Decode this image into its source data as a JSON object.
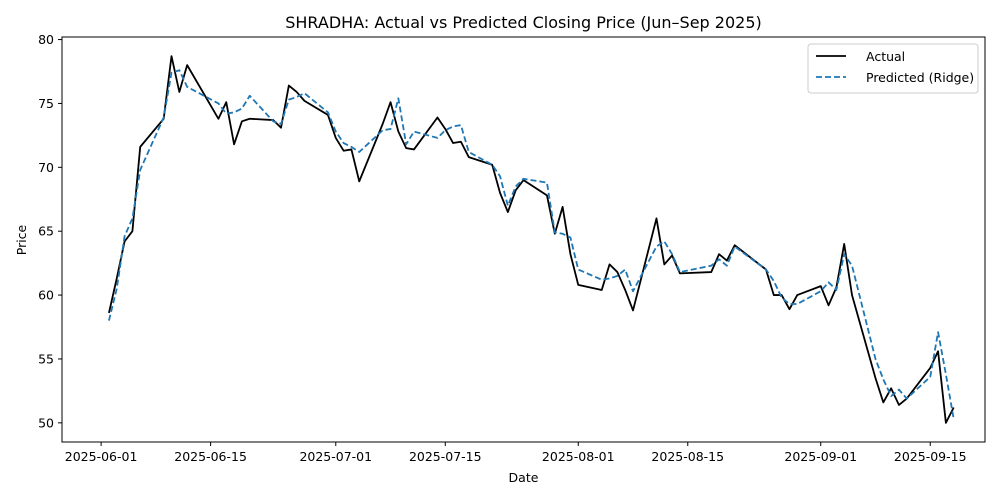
{
  "chart_data": {
    "type": "line",
    "title": "SHRADHA: Actual vs Predicted Closing Price (Jun–Sep 2025)",
    "xlabel": "Date",
    "ylabel": "Price",
    "xlim": [
      "2025-05-27",
      "2025-09-22"
    ],
    "ylim": [
      48.5,
      80.2
    ],
    "x_ticks": [
      "2025-06-01",
      "2025-06-15",
      "2025-07-01",
      "2025-07-15",
      "2025-08-01",
      "2025-08-15",
      "2025-09-01",
      "2025-09-15"
    ],
    "y_ticks": [
      50,
      55,
      60,
      65,
      70,
      75,
      80
    ],
    "grid": false,
    "legend_position": "top-right",
    "series": [
      {
        "name": "Actual",
        "color": "#000000",
        "line_style": "solid",
        "points": [
          [
            "2025-06-02",
            58.6
          ],
          [
            "2025-06-03",
            61.3
          ],
          [
            "2025-06-04",
            64.2
          ],
          [
            "2025-06-05",
            65.0
          ],
          [
            "2025-06-06",
            71.6
          ],
          [
            "2025-06-09",
            73.8
          ],
          [
            "2025-06-10",
            78.7
          ],
          [
            "2025-06-11",
            75.9
          ],
          [
            "2025-06-12",
            78.0
          ],
          [
            "2025-06-16",
            73.8
          ],
          [
            "2025-06-17",
            75.1
          ],
          [
            "2025-06-18",
            71.8
          ],
          [
            "2025-06-19",
            73.6
          ],
          [
            "2025-06-20",
            73.8
          ],
          [
            "2025-06-23",
            73.7
          ],
          [
            "2025-06-24",
            73.1
          ],
          [
            "2025-06-25",
            76.4
          ],
          [
            "2025-06-26",
            75.9
          ],
          [
            "2025-06-27",
            75.2
          ],
          [
            "2025-06-30",
            74.1
          ],
          [
            "2025-07-01",
            72.3
          ],
          [
            "2025-07-02",
            71.3
          ],
          [
            "2025-07-03",
            71.4
          ],
          [
            "2025-07-04",
            68.9
          ],
          [
            "2025-07-07",
            73.4
          ],
          [
            "2025-07-08",
            75.1
          ],
          [
            "2025-07-09",
            72.8
          ],
          [
            "2025-07-10",
            71.5
          ],
          [
            "2025-07-11",
            71.4
          ],
          [
            "2025-07-14",
            73.9
          ],
          [
            "2025-07-15",
            73.0
          ],
          [
            "2025-07-16",
            71.9
          ],
          [
            "2025-07-17",
            72.0
          ],
          [
            "2025-07-18",
            70.8
          ],
          [
            "2025-07-21",
            70.2
          ],
          [
            "2025-07-22",
            68.0
          ],
          [
            "2025-07-23",
            66.5
          ],
          [
            "2025-07-24",
            68.2
          ],
          [
            "2025-07-25",
            69.0
          ],
          [
            "2025-07-28",
            67.8
          ],
          [
            "2025-07-29",
            64.8
          ],
          [
            "2025-07-30",
            66.9
          ],
          [
            "2025-07-31",
            63.2
          ],
          [
            "2025-08-01",
            60.8
          ],
          [
            "2025-08-04",
            60.4
          ],
          [
            "2025-08-05",
            62.4
          ],
          [
            "2025-08-06",
            61.8
          ],
          [
            "2025-08-07",
            60.4
          ],
          [
            "2025-08-08",
            58.8
          ],
          [
            "2025-08-11",
            66.0
          ],
          [
            "2025-08-12",
            62.4
          ],
          [
            "2025-08-13",
            63.1
          ],
          [
            "2025-08-14",
            61.7
          ],
          [
            "2025-08-18",
            61.8
          ],
          [
            "2025-08-19",
            63.2
          ],
          [
            "2025-08-20",
            62.7
          ],
          [
            "2025-08-21",
            63.9
          ],
          [
            "2025-08-25",
            62.0
          ],
          [
            "2025-08-26",
            60.0
          ],
          [
            "2025-08-27",
            60.0
          ],
          [
            "2025-08-28",
            58.9
          ],
          [
            "2025-08-29",
            60.0
          ],
          [
            "2025-09-01",
            60.7
          ],
          [
            "2025-09-02",
            59.2
          ],
          [
            "2025-09-03",
            60.6
          ],
          [
            "2025-09-04",
            64.0
          ],
          [
            "2025-09-05",
            60.0
          ],
          [
            "2025-09-08",
            53.5
          ],
          [
            "2025-09-09",
            51.6
          ],
          [
            "2025-09-10",
            52.7
          ],
          [
            "2025-09-11",
            51.4
          ],
          [
            "2025-09-12",
            51.9
          ],
          [
            "2025-09-15",
            54.3
          ],
          [
            "2025-09-16",
            55.6
          ],
          [
            "2025-09-17",
            50.0
          ],
          [
            "2025-09-18",
            51.2
          ]
        ]
      },
      {
        "name": "Predicted (Ridge)",
        "color": "#1f77b4",
        "line_style": "dashed",
        "points": [
          [
            "2025-06-02",
            58.0
          ],
          [
            "2025-06-03",
            60.5
          ],
          [
            "2025-06-04",
            64.6
          ],
          [
            "2025-06-05",
            66.0
          ],
          [
            "2025-06-06",
            69.8
          ],
          [
            "2025-06-09",
            73.9
          ],
          [
            "2025-06-10",
            77.4
          ],
          [
            "2025-06-11",
            77.6
          ],
          [
            "2025-06-12",
            76.3
          ],
          [
            "2025-06-16",
            75.0
          ],
          [
            "2025-06-17",
            74.2
          ],
          [
            "2025-06-18",
            74.3
          ],
          [
            "2025-06-19",
            74.6
          ],
          [
            "2025-06-20",
            75.6
          ],
          [
            "2025-06-23",
            73.6
          ],
          [
            "2025-06-24",
            73.4
          ],
          [
            "2025-06-25",
            75.3
          ],
          [
            "2025-06-26",
            75.5
          ],
          [
            "2025-06-27",
            75.8
          ],
          [
            "2025-06-30",
            74.3
          ],
          [
            "2025-07-01",
            72.8
          ],
          [
            "2025-07-02",
            71.9
          ],
          [
            "2025-07-03",
            71.6
          ],
          [
            "2025-07-04",
            71.2
          ],
          [
            "2025-07-07",
            72.9
          ],
          [
            "2025-07-08",
            73.0
          ],
          [
            "2025-07-09",
            75.4
          ],
          [
            "2025-07-10",
            71.8
          ],
          [
            "2025-07-11",
            72.8
          ],
          [
            "2025-07-14",
            72.3
          ],
          [
            "2025-07-15",
            72.9
          ],
          [
            "2025-07-16",
            73.2
          ],
          [
            "2025-07-17",
            73.3
          ],
          [
            "2025-07-18",
            71.2
          ],
          [
            "2025-07-21",
            70.2
          ],
          [
            "2025-07-22",
            69.3
          ],
          [
            "2025-07-23",
            67.0
          ],
          [
            "2025-07-24",
            68.5
          ],
          [
            "2025-07-25",
            69.1
          ],
          [
            "2025-07-28",
            68.8
          ],
          [
            "2025-07-29",
            64.9
          ],
          [
            "2025-07-30",
            64.8
          ],
          [
            "2025-07-31",
            64.5
          ],
          [
            "2025-08-01",
            62.0
          ],
          [
            "2025-08-04",
            61.2
          ],
          [
            "2025-08-05",
            61.3
          ],
          [
            "2025-08-06",
            61.5
          ],
          [
            "2025-08-07",
            62.0
          ],
          [
            "2025-08-08",
            60.3
          ],
          [
            "2025-08-11",
            63.8
          ],
          [
            "2025-08-12",
            64.2
          ],
          [
            "2025-08-13",
            63.2
          ],
          [
            "2025-08-14",
            61.8
          ],
          [
            "2025-08-18",
            62.3
          ],
          [
            "2025-08-19",
            62.8
          ],
          [
            "2025-08-20",
            62.3
          ],
          [
            "2025-08-21",
            63.8
          ],
          [
            "2025-08-25",
            62.0
          ],
          [
            "2025-08-26",
            61.1
          ],
          [
            "2025-08-27",
            59.8
          ],
          [
            "2025-08-28",
            59.3
          ],
          [
            "2025-08-29",
            59.3
          ],
          [
            "2025-09-01",
            60.3
          ],
          [
            "2025-09-02",
            61.0
          ],
          [
            "2025-09-03",
            60.4
          ],
          [
            "2025-09-04",
            63.2
          ],
          [
            "2025-09-05",
            62.3
          ],
          [
            "2025-09-08",
            55.0
          ],
          [
            "2025-09-09",
            53.4
          ],
          [
            "2025-09-10",
            52.1
          ],
          [
            "2025-09-11",
            52.6
          ],
          [
            "2025-09-12",
            51.9
          ],
          [
            "2025-09-15",
            53.6
          ],
          [
            "2025-09-16",
            57.1
          ],
          [
            "2025-09-17",
            53.8
          ],
          [
            "2025-09-18",
            50.3
          ]
        ]
      }
    ]
  }
}
